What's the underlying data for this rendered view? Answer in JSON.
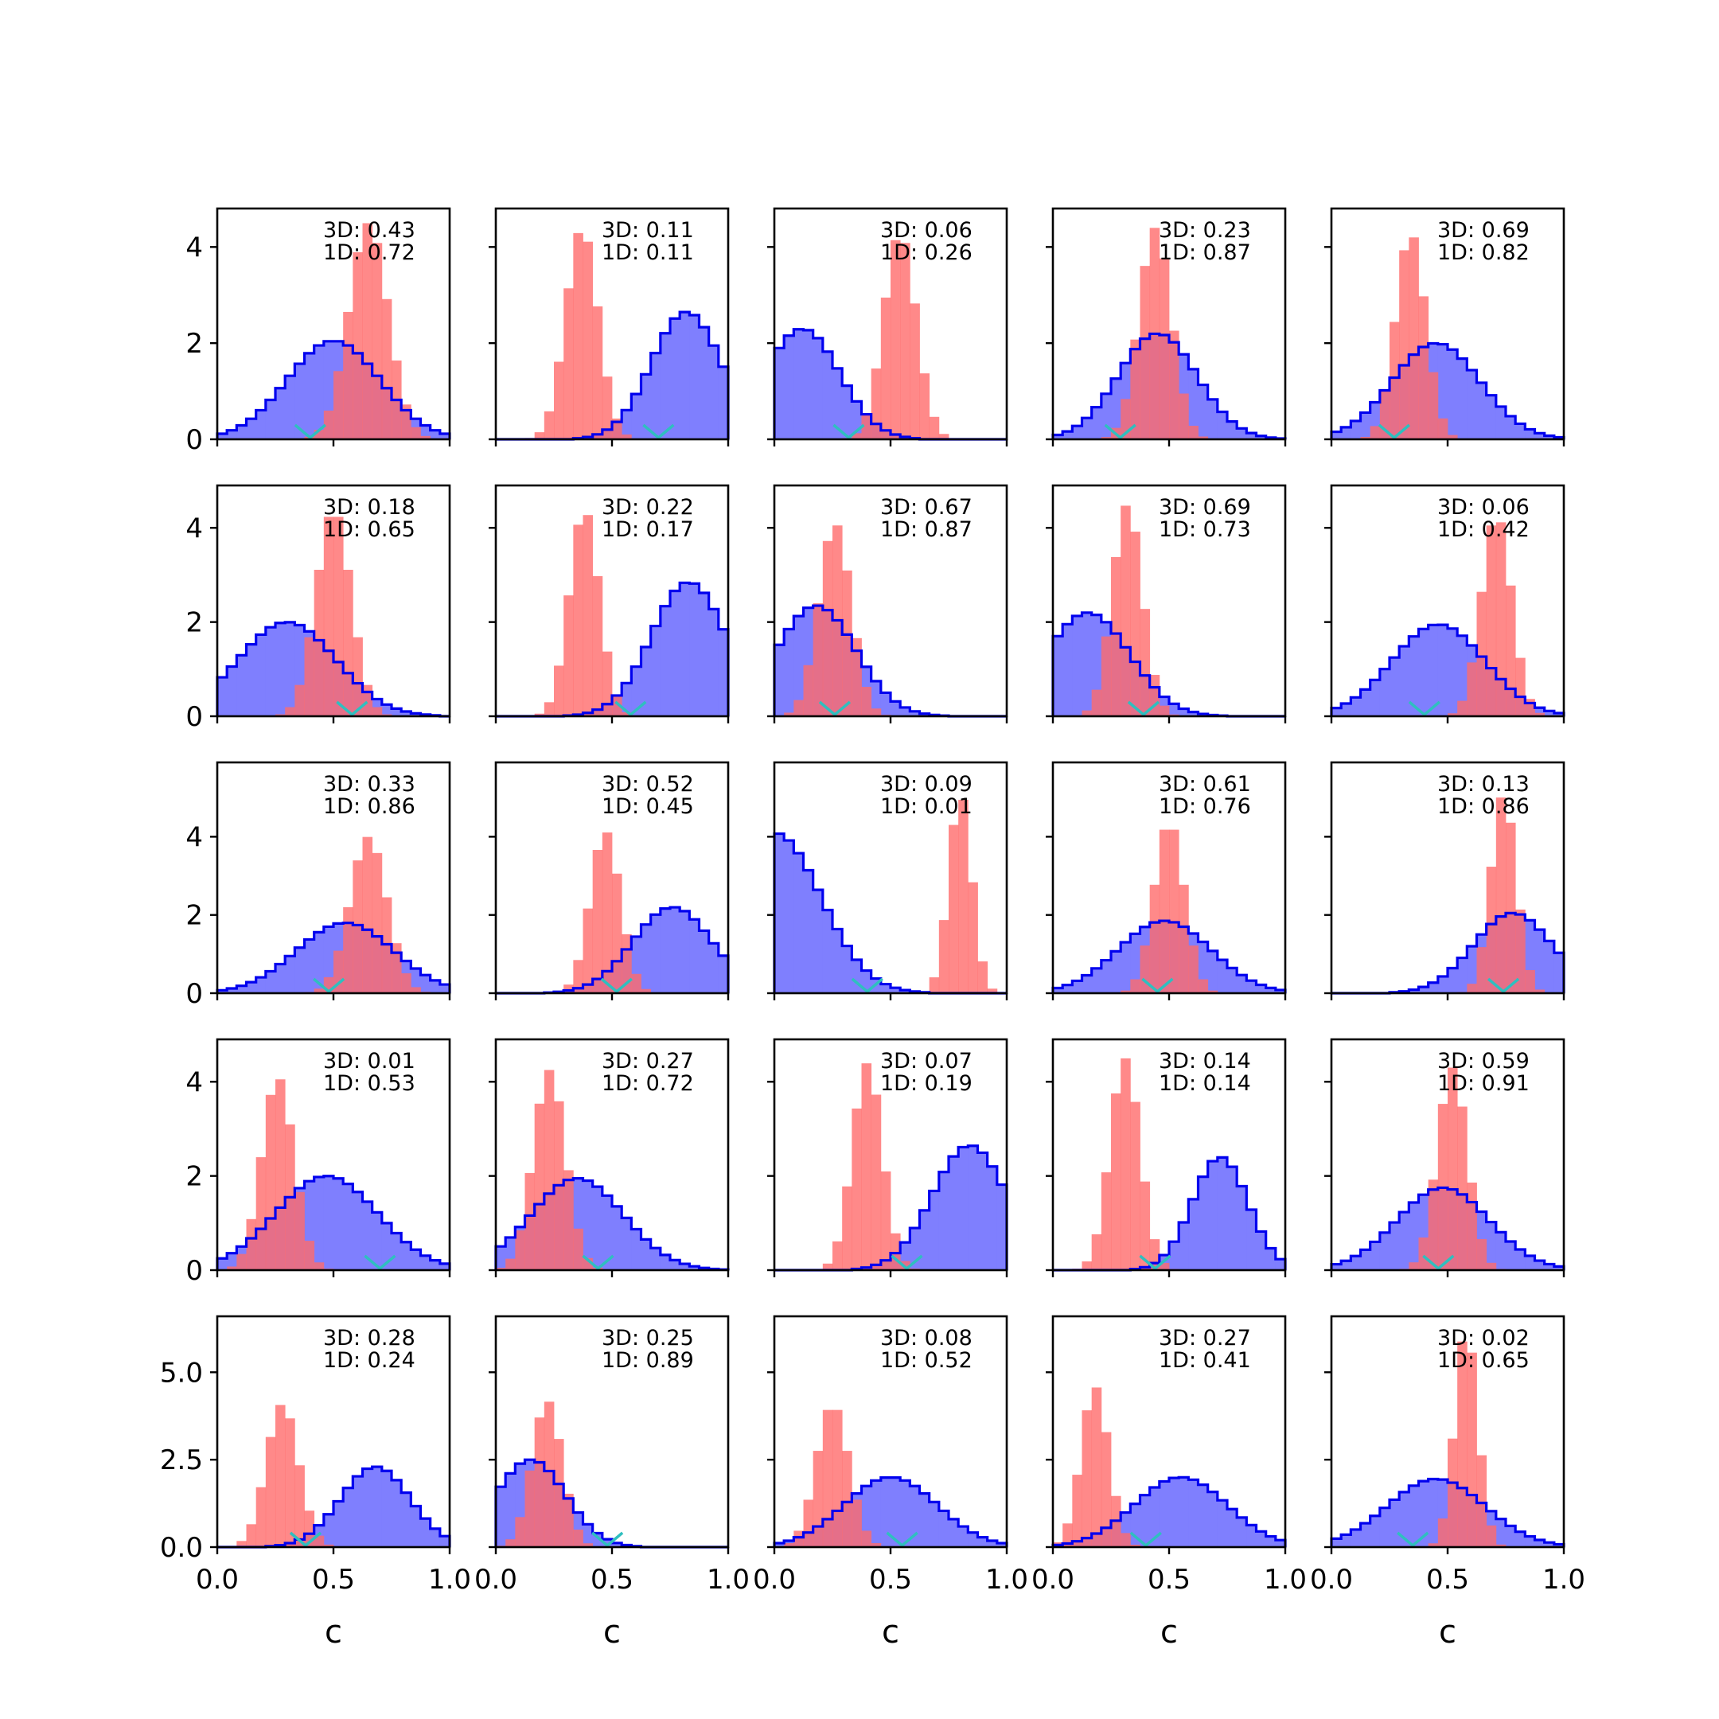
{
  "chart_data": {
    "type": "histogram-grid",
    "rows": 5,
    "cols": 5,
    "xlim": [
      0,
      1
    ],
    "xlabel": "c",
    "xticks": [
      "0.0",
      "0.5",
      "1.0"
    ],
    "row_yaxis": [
      {
        "ylim": [
          0,
          4.8
        ],
        "ticks": [
          0,
          2,
          4
        ],
        "tick_labels": [
          "0",
          "2",
          "4"
        ]
      },
      {
        "ylim": [
          0,
          4.9
        ],
        "ticks": [
          0,
          2,
          4
        ],
        "tick_labels": [
          "0",
          "2",
          "4"
        ]
      },
      {
        "ylim": [
          0,
          5.9
        ],
        "ticks": [
          0,
          2,
          4
        ],
        "tick_labels": [
          "0",
          "2",
          "4"
        ]
      },
      {
        "ylim": [
          0,
          4.9
        ],
        "ticks": [
          0,
          2,
          4
        ],
        "tick_labels": [
          "0",
          "2",
          "4"
        ]
      },
      {
        "ylim": [
          0,
          6.6
        ],
        "ticks": [
          0,
          2.5,
          5.0
        ],
        "tick_labels": [
          "0.0",
          "2.5",
          "5.0"
        ]
      }
    ],
    "colors": {
      "blue_fill": "#7f7ffe",
      "blue_edge": "#0000ee",
      "red_fill": "#ff6b6b",
      "marker": "#2fbfbf"
    },
    "series": [
      {
        "name": "blue",
        "style": "step-filled"
      },
      {
        "name": "red",
        "style": "filled"
      }
    ],
    "panels": [
      {
        "label3d": "3D: 0.43",
        "label1d": "1D: 0.72",
        "blue": {
          "mu": 0.5,
          "sd": 0.2,
          "peak": 2.05
        },
        "red": {
          "mu": 0.65,
          "sd": 0.085,
          "peak": 4.5
        },
        "marker": 0.4
      },
      {
        "label3d": "3D: 0.11",
        "label1d": "1D: 0.11",
        "blue": {
          "mu": 0.82,
          "sd": 0.15,
          "peak": 2.65
        },
        "red": {
          "mu": 0.37,
          "sd": 0.07,
          "peak": 4.4
        },
        "marker": 0.7
      },
      {
        "label3d": "3D: 0.06",
        "label1d": "1D: 0.26",
        "blue": {
          "mu": 0.12,
          "sd": 0.16,
          "peak": 2.3
        },
        "red": {
          "mu": 0.54,
          "sd": 0.07,
          "peak": 4.3
        },
        "marker": 0.32
      },
      {
        "label3d": "3D: 0.23",
        "label1d": "1D: 0.87",
        "blue": {
          "mu": 0.45,
          "sd": 0.17,
          "peak": 2.2
        },
        "red": {
          "mu": 0.44,
          "sd": 0.07,
          "peak": 4.4
        },
        "marker": 0.29
      },
      {
        "label3d": "3D: 0.69",
        "label1d": "1D: 0.82",
        "blue": {
          "mu": 0.45,
          "sd": 0.19,
          "peak": 2.0
        },
        "red": {
          "mu": 0.34,
          "sd": 0.065,
          "peak": 4.3
        },
        "marker": 0.27
      },
      {
        "label3d": "3D: 0.18",
        "label1d": "1D: 0.65",
        "blue": {
          "mu": 0.3,
          "sd": 0.21,
          "peak": 2.0
        },
        "red": {
          "mu": 0.5,
          "sd": 0.075,
          "peak": 4.4
        },
        "marker": 0.58
      },
      {
        "label3d": "3D: 0.22",
        "label1d": "1D: 0.17",
        "blue": {
          "mu": 0.83,
          "sd": 0.16,
          "peak": 2.85
        },
        "red": {
          "mu": 0.38,
          "sd": 0.065,
          "peak": 4.4
        },
        "marker": 0.58
      },
      {
        "label3d": "3D: 0.67",
        "label1d": "1D: 0.87",
        "blue": {
          "mu": 0.18,
          "sd": 0.17,
          "peak": 2.35
        },
        "red": {
          "mu": 0.26,
          "sd": 0.07,
          "peak": 4.1
        },
        "marker": 0.26
      },
      {
        "label3d": "3D: 0.69",
        "label1d": "1D: 0.73",
        "blue": {
          "mu": 0.15,
          "sd": 0.18,
          "peak": 2.2
        },
        "red": {
          "mu": 0.32,
          "sd": 0.065,
          "peak": 4.5
        },
        "marker": 0.39
      },
      {
        "label3d": "3D: 0.06",
        "label1d": "1D: 0.42",
        "blue": {
          "mu": 0.46,
          "sd": 0.2,
          "peak": 1.95
        },
        "red": {
          "mu": 0.71,
          "sd": 0.065,
          "peak": 4.3
        },
        "marker": 0.4
      },
      {
        "label3d": "3D: 0.33",
        "label1d": "1D: 0.86",
        "blue": {
          "mu": 0.55,
          "sd": 0.21,
          "peak": 1.8
        },
        "red": {
          "mu": 0.65,
          "sd": 0.08,
          "peak": 4.0
        },
        "marker": 0.48
      },
      {
        "label3d": "3D: 0.52",
        "label1d": "1D: 0.45",
        "blue": {
          "mu": 0.76,
          "sd": 0.17,
          "peak": 2.2
        },
        "red": {
          "mu": 0.47,
          "sd": 0.065,
          "peak": 4.15
        },
        "marker": 0.52
      },
      {
        "label3d": "3D: 0.09",
        "label1d": "1D: 0.01",
        "blue": {
          "mu": 0.0,
          "sd": 0.2,
          "peak": 4.1
        },
        "red": {
          "mu": 0.8,
          "sd": 0.05,
          "peak": 5.1
        },
        "marker": 0.4
      },
      {
        "label3d": "3D: 0.61",
        "label1d": "1D: 0.76",
        "blue": {
          "mu": 0.48,
          "sd": 0.2,
          "peak": 1.85
        },
        "red": {
          "mu": 0.5,
          "sd": 0.065,
          "peak": 4.4
        },
        "marker": 0.45
      },
      {
        "label3d": "3D: 0.13",
        "label1d": "1D: 0.86",
        "blue": {
          "mu": 0.78,
          "sd": 0.17,
          "peak": 2.05
        },
        "red": {
          "mu": 0.74,
          "sd": 0.055,
          "peak": 5.1
        },
        "marker": 0.74
      },
      {
        "label3d": "3D: 0.01",
        "label1d": "1D: 0.53",
        "blue": {
          "mu": 0.47,
          "sd": 0.22,
          "peak": 2.0
        },
        "red": {
          "mu": 0.26,
          "sd": 0.07,
          "peak": 4.1
        },
        "marker": 0.7
      },
      {
        "label3d": "3D: 0.27",
        "label1d": "1D: 0.72",
        "blue": {
          "mu": 0.35,
          "sd": 0.2,
          "peak": 1.95
        },
        "red": {
          "mu": 0.23,
          "sd": 0.07,
          "peak": 4.25
        },
        "marker": 0.44
      },
      {
        "label3d": "3D: 0.07",
        "label1d": "1D: 0.19",
        "blue": {
          "mu": 0.84,
          "sd": 0.16,
          "peak": 2.65
        },
        "red": {
          "mu": 0.4,
          "sd": 0.065,
          "peak": 4.4
        },
        "marker": 0.57
      },
      {
        "label3d": "3D: 0.14",
        "label1d": "1D: 0.14",
        "blue": {
          "mu": 0.72,
          "sd": 0.12,
          "peak": 2.4
        },
        "red": {
          "mu": 0.31,
          "sd": 0.065,
          "peak": 4.5
        },
        "marker": 0.44
      },
      {
        "label3d": "3D: 0.59",
        "label1d": "1D: 0.91",
        "blue": {
          "mu": 0.48,
          "sd": 0.2,
          "peak": 1.75
        },
        "red": {
          "mu": 0.52,
          "sd": 0.065,
          "peak": 4.3
        },
        "marker": 0.46
      },
      {
        "label3d": "3D: 0.28",
        "label1d": "1D: 0.24",
        "blue": {
          "mu": 0.68,
          "sd": 0.15,
          "peak": 2.3
        },
        "red": {
          "mu": 0.28,
          "sd": 0.07,
          "peak": 4.1
        },
        "marker": 0.38
      },
      {
        "label3d": "3D: 0.25",
        "label1d": "1D: 0.89",
        "blue": {
          "mu": 0.15,
          "sd": 0.15,
          "peak": 2.5
        },
        "red": {
          "mu": 0.22,
          "sd": 0.065,
          "peak": 4.2
        },
        "marker": 0.48
      },
      {
        "label3d": "3D: 0.08",
        "label1d": "1D: 0.52",
        "blue": {
          "mu": 0.5,
          "sd": 0.2,
          "peak": 2.0
        },
        "red": {
          "mu": 0.25,
          "sd": 0.07,
          "peak": 4.1
        },
        "marker": 0.55
      },
      {
        "label3d": "3D: 0.27",
        "label1d": "1D: 0.41",
        "blue": {
          "mu": 0.55,
          "sd": 0.2,
          "peak": 2.0
        },
        "red": {
          "mu": 0.18,
          "sd": 0.06,
          "peak": 4.6
        },
        "marker": 0.4
      },
      {
        "label3d": "3D: 0.02",
        "label1d": "1D: 0.65",
        "blue": {
          "mu": 0.45,
          "sd": 0.21,
          "peak": 1.95
        },
        "red": {
          "mu": 0.58,
          "sd": 0.05,
          "peak": 6.25
        },
        "marker": 0.35
      }
    ]
  }
}
